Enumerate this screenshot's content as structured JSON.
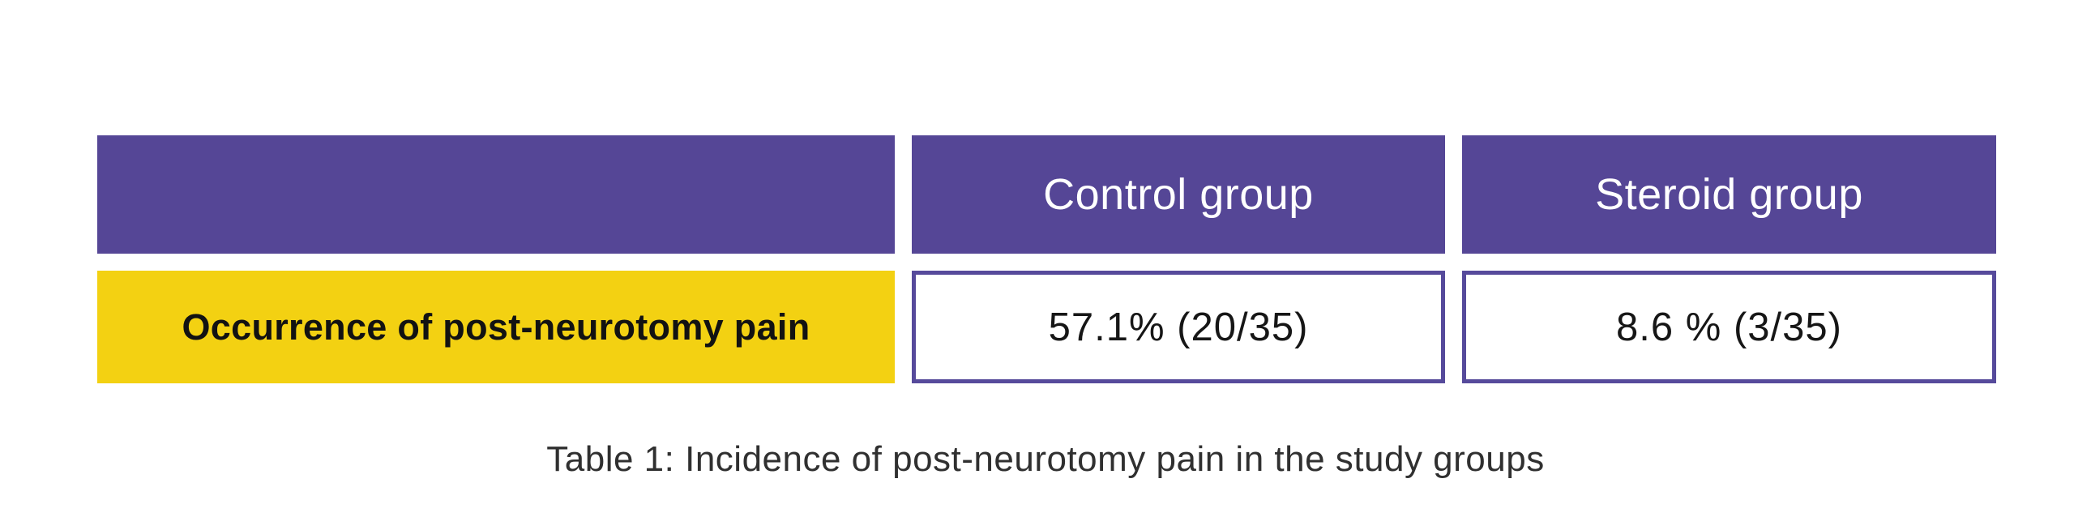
{
  "table": {
    "columns": [
      "",
      "Control group",
      "Steroid group"
    ],
    "rows": [
      {
        "label": "Occurrence of post-neurotomy pain",
        "values": [
          "57.1% (20/35)",
          "8.6 % (3/35)"
        ]
      }
    ],
    "caption": "Table 1: Incidence of post-neurotomy pain in the study groups",
    "colors": {
      "header_bg": "#554696",
      "value_cell_border": "#564a9b",
      "label_bg": "#f3d112",
      "header_text": "#ffffff",
      "body_text": "#161616",
      "caption_text": "#303030",
      "page_bg": "#ffffff"
    }
  }
}
